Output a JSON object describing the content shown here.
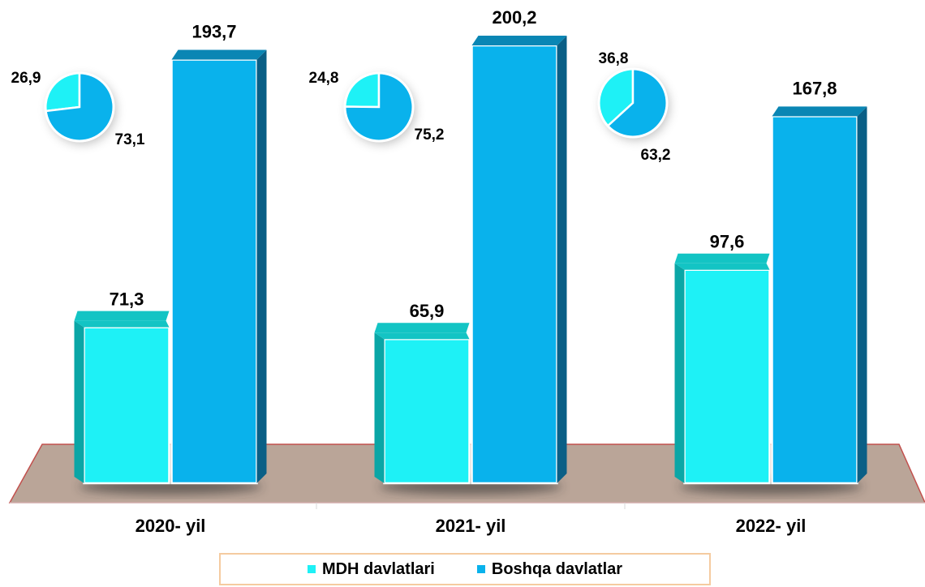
{
  "chart_data": {
    "type": "bar",
    "categories": [
      "2020- yil",
      "2021- yil",
      "2022- yil"
    ],
    "series": [
      {
        "name": "MDH davlatlari",
        "color": "#1ef1f6",
        "values": [
          71.3,
          65.9,
          97.6
        ],
        "labels": [
          "71,3",
          "65,9",
          "97,6"
        ]
      },
      {
        "name": "Boshqa davlatlar",
        "color": "#09b2ec",
        "values": [
          193.7,
          200.2,
          167.8
        ],
        "labels": [
          "193,7",
          "200,2",
          "167,8"
        ]
      }
    ],
    "ylim": [
      0,
      210
    ],
    "grid": false,
    "legend_position": "bottom",
    "pies": [
      {
        "category": "2020- yil",
        "values": [
          26.9,
          73.1
        ],
        "labels": [
          "26,9",
          "73,1"
        ]
      },
      {
        "category": "2021- yil",
        "values": [
          24.8,
          75.2
        ],
        "labels": [
          "24,8",
          "75,2"
        ]
      },
      {
        "category": "2022- yil",
        "values": [
          36.8,
          63.2
        ],
        "labels": [
          "36,8",
          "63,2"
        ]
      }
    ]
  }
}
